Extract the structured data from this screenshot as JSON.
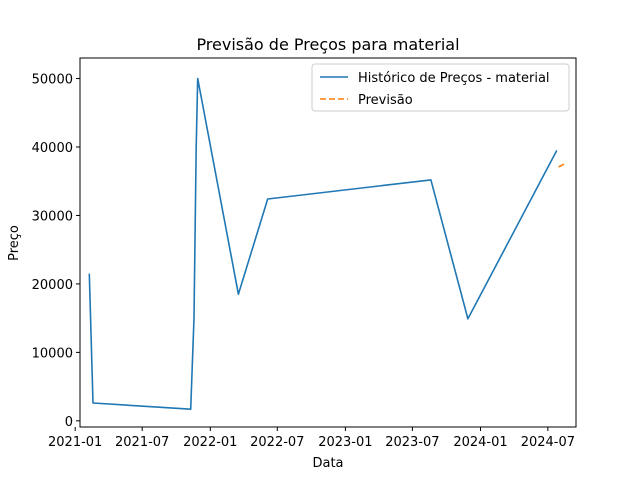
{
  "chart_data": {
    "type": "line",
    "title": "Previsão de Preços para material",
    "xlabel": "Data",
    "ylabel": "Preço",
    "x_axis_type": "date",
    "xlim": [
      "2021-01-14",
      "2024-09-15"
    ],
    "ylim": [
      -900,
      53000
    ],
    "xticks": [
      {
        "value": "2021-01-01",
        "label": "2021-01"
      },
      {
        "value": "2021-07-01",
        "label": "2021-07"
      },
      {
        "value": "2022-01-01",
        "label": "2022-01"
      },
      {
        "value": "2022-07-01",
        "label": "2022-07"
      },
      {
        "value": "2023-01-01",
        "label": "2023-01"
      },
      {
        "value": "2023-07-01",
        "label": "2023-07"
      },
      {
        "value": "2024-01-01",
        "label": "2024-01"
      },
      {
        "value": "2024-07-01",
        "label": "2024-07"
      }
    ],
    "yticks": [
      {
        "value": 0,
        "label": "0"
      },
      {
        "value": 10000,
        "label": "10000"
      },
      {
        "value": 20000,
        "label": "20000"
      },
      {
        "value": 30000,
        "label": "30000"
      },
      {
        "value": 40000,
        "label": "40000"
      },
      {
        "value": 50000,
        "label": "50000"
      }
    ],
    "grid": false,
    "legend_position": "top-right",
    "series": [
      {
        "name": "Histórico de Preços - material",
        "color": "#1f77b4",
        "style": "solid",
        "points": [
          {
            "x": "2021-02-08",
            "y": 21500
          },
          {
            "x": "2021-02-18",
            "y": 2600
          },
          {
            "x": "2021-11-09",
            "y": 1700
          },
          {
            "x": "2021-11-18",
            "y": 15000
          },
          {
            "x": "2021-11-24",
            "y": 40000
          },
          {
            "x": "2021-11-28",
            "y": 50000
          },
          {
            "x": "2022-03-18",
            "y": 18500
          },
          {
            "x": "2022-06-05",
            "y": 32400
          },
          {
            "x": "2023-08-20",
            "y": 35200
          },
          {
            "x": "2023-11-28",
            "y": 14900
          },
          {
            "x": "2024-07-25",
            "y": 39500
          }
        ]
      },
      {
        "name": "Previsão",
        "color": "#ff7f0e",
        "style": "dashed",
        "points": [
          {
            "x": "2024-07-30",
            "y": 37100
          },
          {
            "x": "2024-08-18",
            "y": 37600
          }
        ]
      }
    ]
  }
}
